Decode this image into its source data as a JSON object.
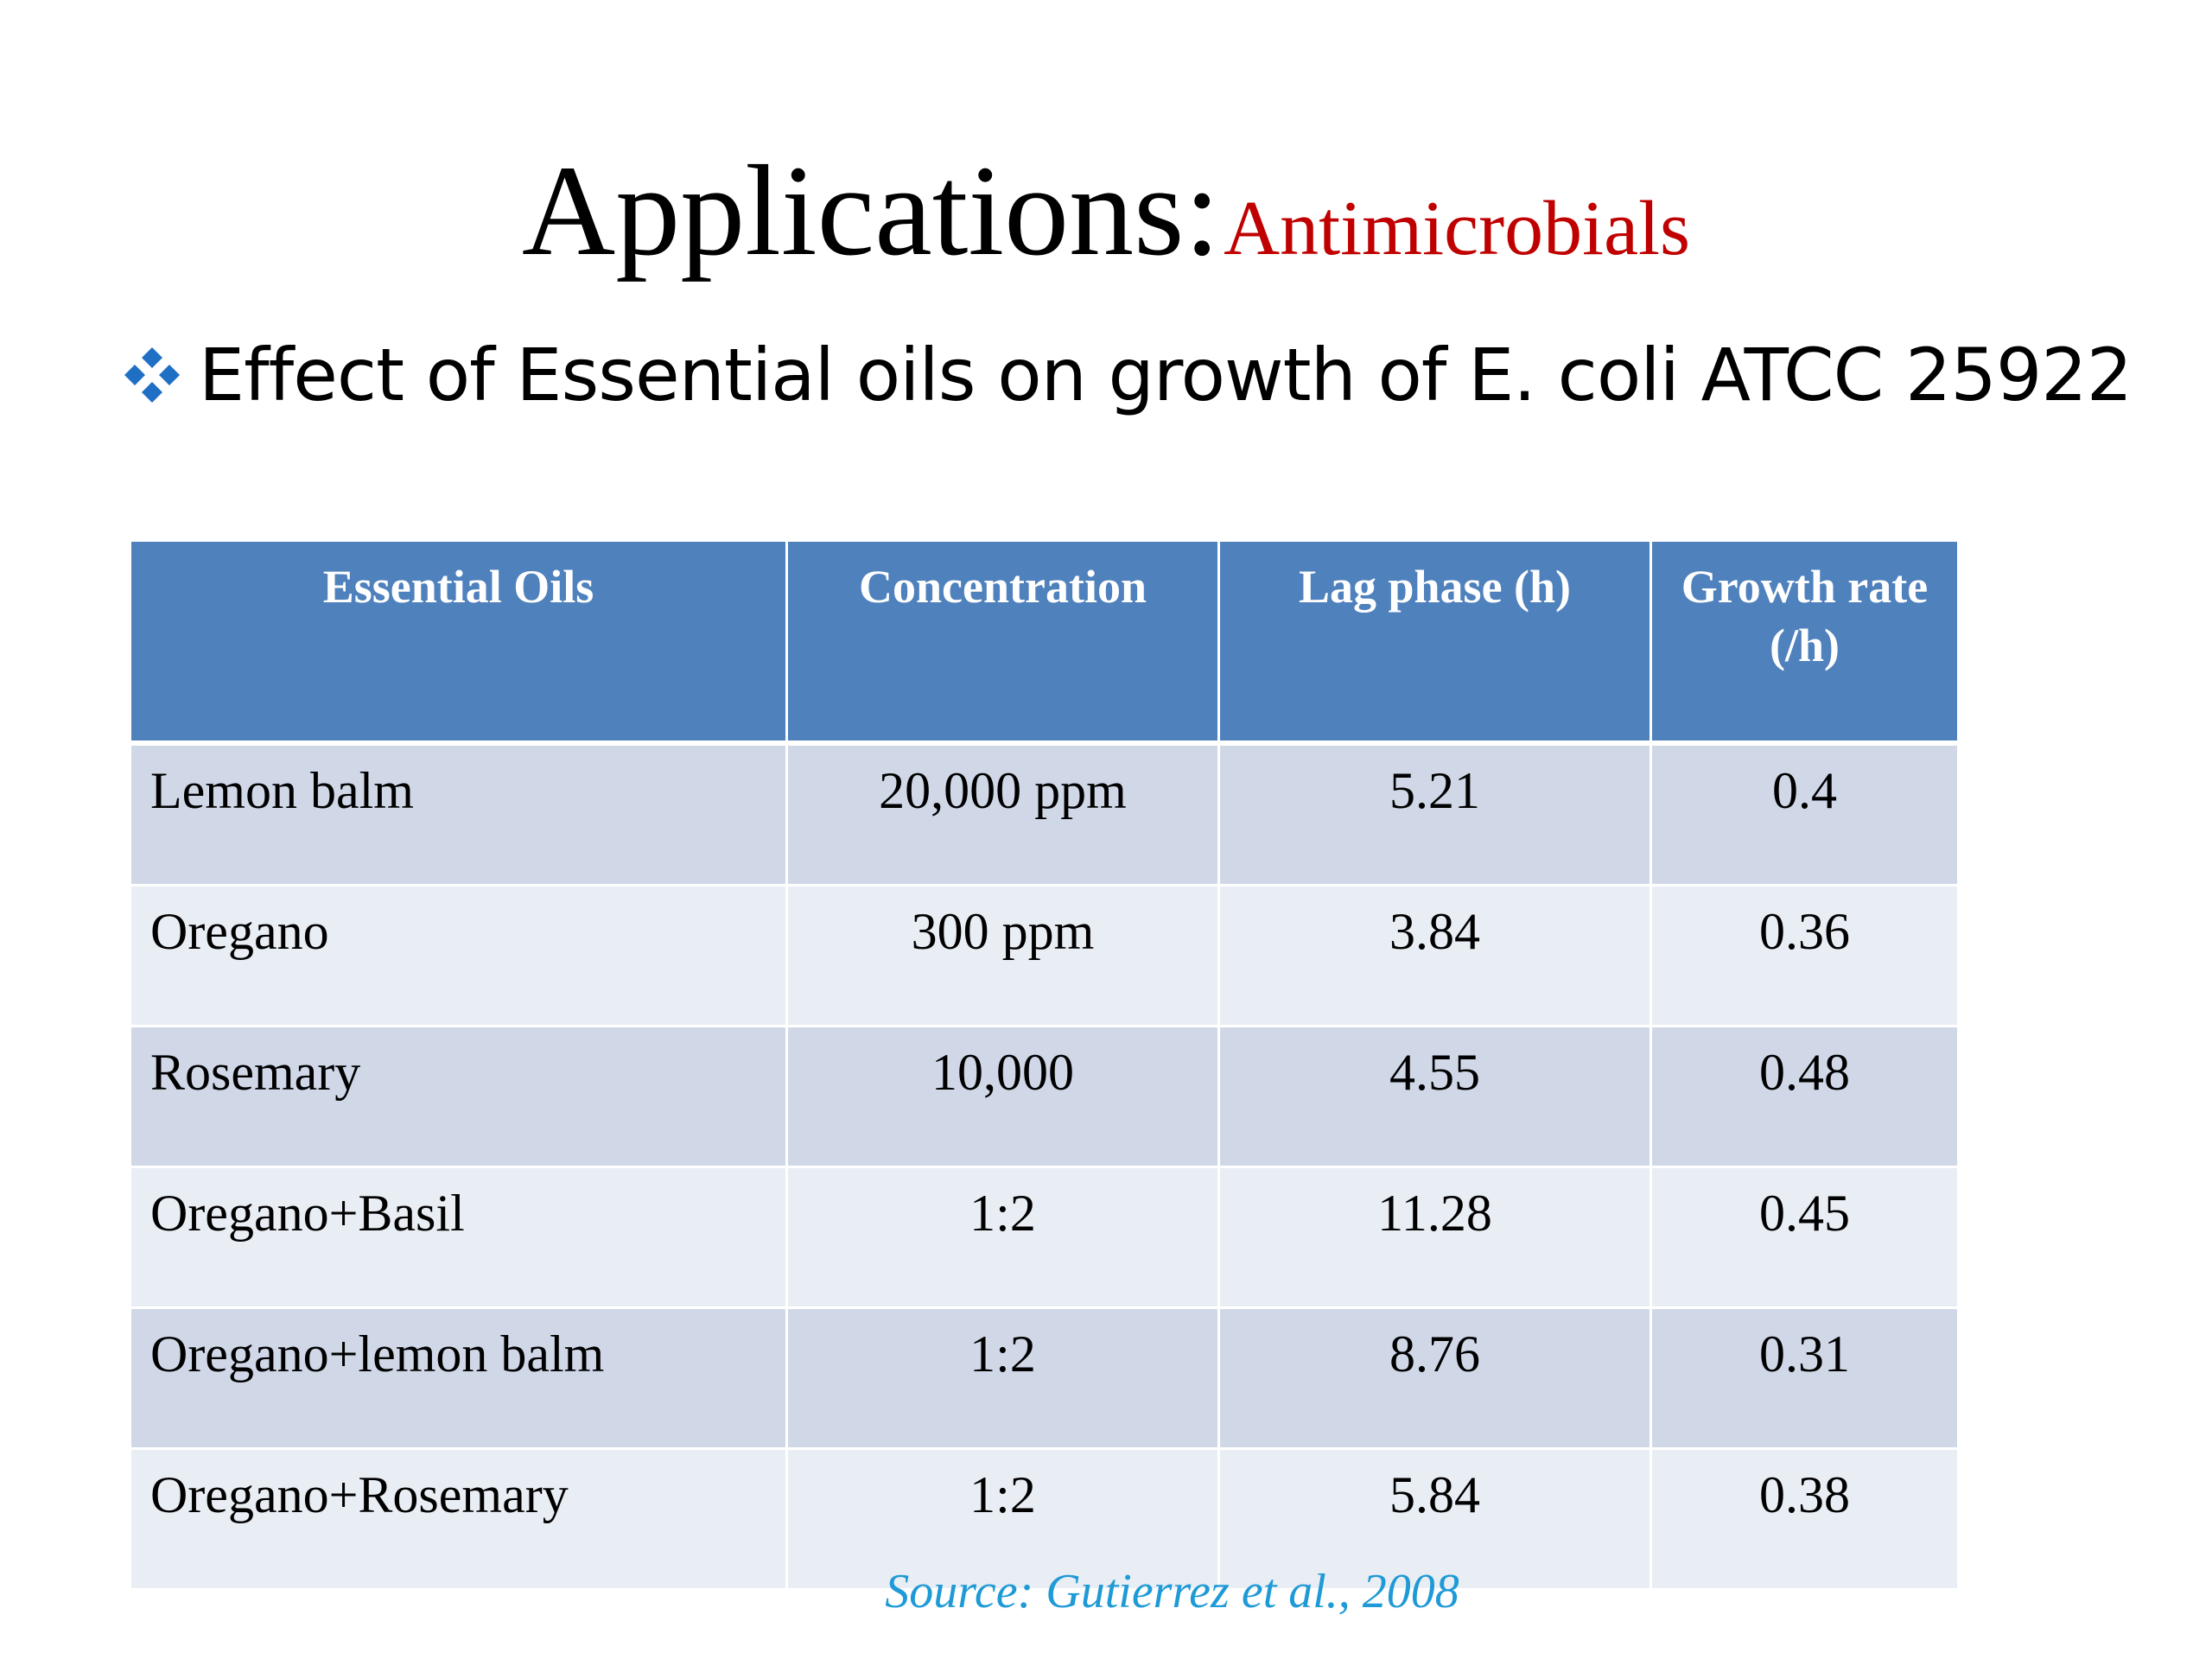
{
  "slide": {
    "title_main": "Applications:",
    "title_sub": "Antimicrobials",
    "bullet_text": "Effect of Essential oils on growth of E. coli ATCC 25922",
    "bullet_icon": "four-diamond-bullet-icon",
    "source": "Source: Gutierrez et al., 2008",
    "colors": {
      "title_sub": "#c00000",
      "header_bg": "#4f81bd",
      "row_odd": "#d0d8e8",
      "row_even": "#e9edf4",
      "source": "#1e9ad6",
      "bullet": "#1f6fc5"
    }
  },
  "table": {
    "headers": [
      "Essential Oils",
      "Concentration",
      "Lag phase (h)",
      "Growth rate (/h)"
    ],
    "rows": [
      [
        "Lemon balm",
        "20,000 ppm",
        "5.21",
        "0.4"
      ],
      [
        "Oregano",
        "300 ppm",
        "3.84",
        "0.36"
      ],
      [
        "Rosemary",
        "10,000",
        "4.55",
        "0.48"
      ],
      [
        "Oregano+Basil",
        "1:2",
        "11.28",
        "0.45"
      ],
      [
        "Oregano+lemon balm",
        "1:2",
        "8.76",
        "0.31"
      ],
      [
        "Oregano+Rosemary",
        "1:2",
        "5.84",
        "0.38"
      ]
    ]
  }
}
